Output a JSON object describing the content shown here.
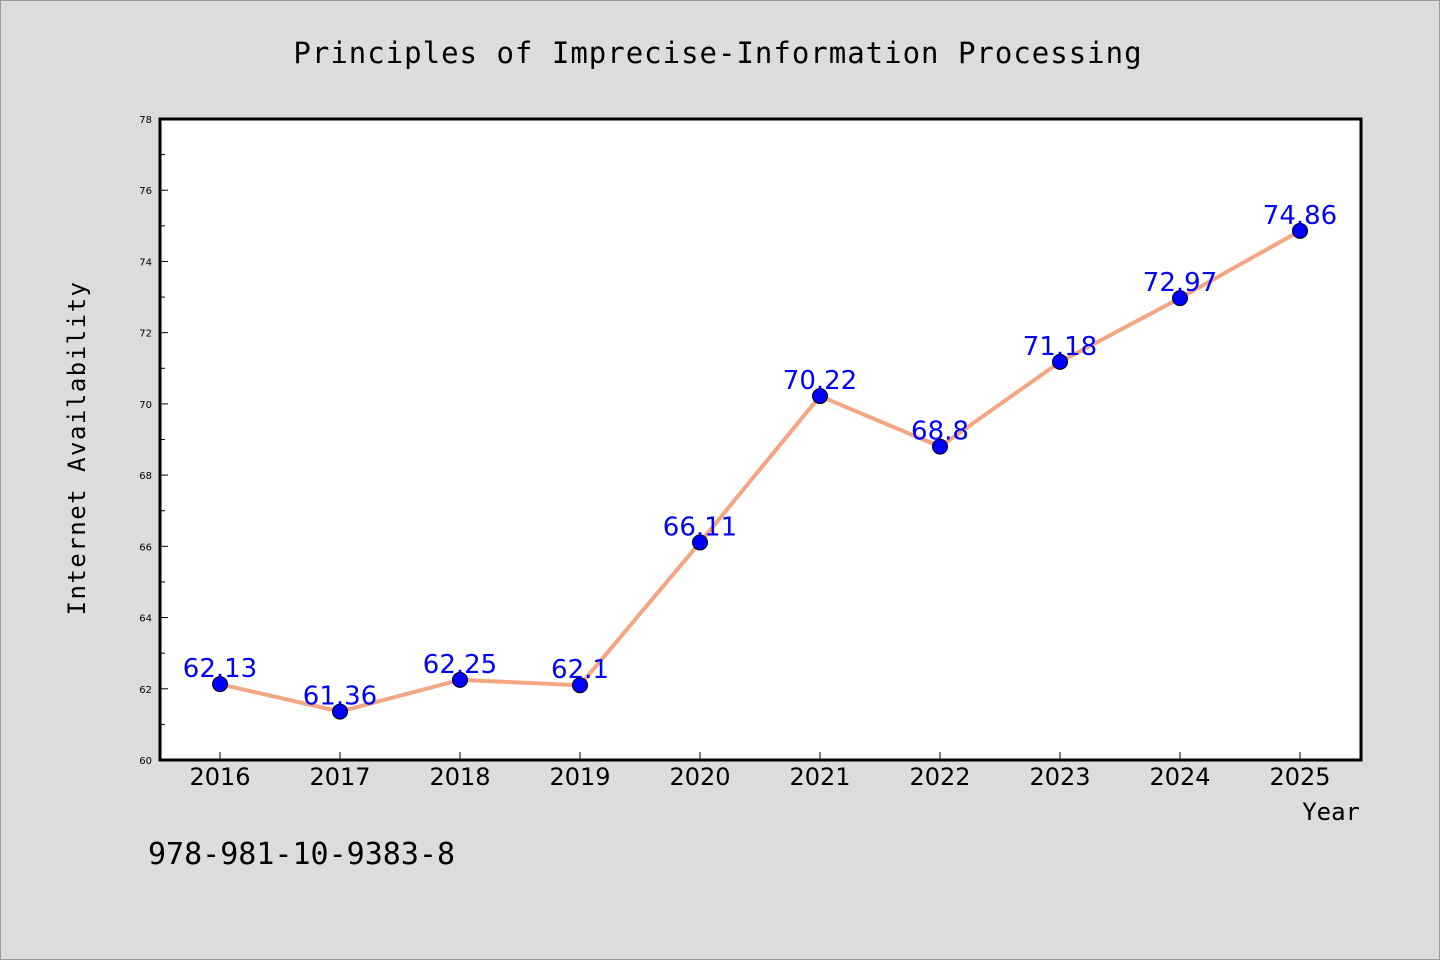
{
  "chart_data": {
    "type": "line",
    "title": "Principles of Imprecise-Information Processing",
    "xlabel": "Year",
    "ylabel": "Internet Availability",
    "categories": [
      "2016",
      "2017",
      "2018",
      "2019",
      "2020",
      "2021",
      "2022",
      "2023",
      "2024",
      "2025"
    ],
    "values": [
      62.13,
      61.36,
      62.25,
      62.1,
      66.11,
      70.22,
      68.8,
      71.18,
      72.97,
      74.86
    ],
    "data_labels": [
      "62.13",
      "61.36",
      "62.25",
      "62.1",
      "66.11",
      "70.22",
      "68.8",
      "71.18",
      "72.97",
      "74.86"
    ],
    "ylim": [
      60,
      78
    ],
    "yticks": [
      "60",
      "62",
      "64",
      "66",
      "68",
      "70",
      "72",
      "74",
      "76",
      "78"
    ],
    "grid": false,
    "line_color": "#f4a582",
    "marker_color": "#0000ff",
    "label_color": "#0000ff",
    "background_color": "#dcdcdc"
  },
  "footer": {
    "isbn": "978-981-10-9383-8"
  }
}
